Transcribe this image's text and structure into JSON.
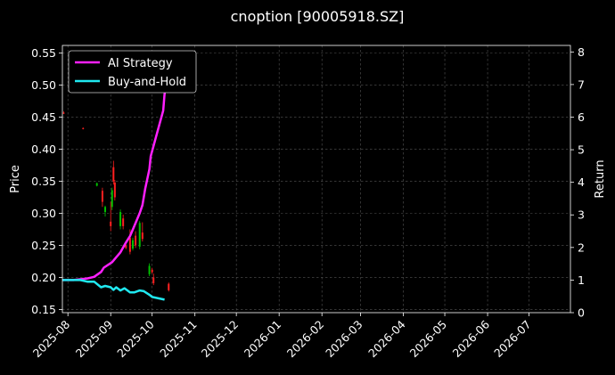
{
  "chart_data": {
    "type": "line",
    "title": "cnoption [90005918.SZ]",
    "ylabel": "Price",
    "y2label": "Return",
    "xlim": [
      "2025-07-28",
      "2026-07-31"
    ],
    "ylim": [
      0.145,
      0.562
    ],
    "y2lim": [
      0,
      8.2
    ],
    "x_ticks": [
      "2025-08",
      "2025-09",
      "2025-10",
      "2025-11",
      "2025-12",
      "2026-01",
      "2026-02",
      "2026-03",
      "2026-04",
      "2026-05",
      "2026-06",
      "2026-07"
    ],
    "y_ticks": [
      0.15,
      0.2,
      0.25,
      0.3,
      0.35,
      0.4,
      0.45,
      0.5,
      0.55
    ],
    "y_tick_labels": [
      "0.15",
      "0.20",
      "0.25",
      "0.30",
      "0.35",
      "0.40",
      "0.45",
      "0.50",
      "0.55"
    ],
    "y2_ticks": [
      0,
      1,
      2,
      3,
      4,
      5,
      6,
      7,
      8
    ],
    "y2_tick_labels": [
      "0",
      "1",
      "2",
      "3",
      "4",
      "5",
      "6",
      "7",
      "8"
    ],
    "grid": true,
    "legend_position": "top-left",
    "colors": {
      "background": "#000000",
      "grid": "#555555",
      "up": "#00c000",
      "down": "#ff2020",
      "ai": "#ff20ff",
      "bh": "#20e8f0",
      "text": "#ffffff"
    },
    "series": [
      {
        "name": "AI Strategy",
        "axis": "right",
        "x": [
          "2025-07-28",
          "2025-08-05",
          "2025-08-15",
          "2025-08-20",
          "2025-08-25",
          "2025-08-27",
          "2025-09-02",
          "2025-09-05",
          "2025-09-08",
          "2025-09-10",
          "2025-09-12",
          "2025-09-15",
          "2025-09-17",
          "2025-09-19",
          "2025-09-22",
          "2025-09-24",
          "2025-09-26",
          "2025-09-29",
          "2025-09-30",
          "2025-10-09",
          "2025-10-10",
          "2025-10-13"
        ],
        "values": [
          1.0,
          1.0,
          1.05,
          1.1,
          1.25,
          1.38,
          1.55,
          1.7,
          1.85,
          2.0,
          2.15,
          2.35,
          2.55,
          2.75,
          3.05,
          3.3,
          3.8,
          4.4,
          4.8,
          6.2,
          6.7,
          7.5
        ]
      },
      {
        "name": "Buy-and-Hold",
        "axis": "right",
        "x": [
          "2025-07-28",
          "2025-08-10",
          "2025-08-15",
          "2025-08-20",
          "2025-08-25",
          "2025-08-28",
          "2025-09-01",
          "2025-09-03",
          "2025-09-05",
          "2025-09-08",
          "2025-09-11",
          "2025-09-15",
          "2025-09-18",
          "2025-09-22",
          "2025-09-25",
          "2025-09-29",
          "2025-10-01",
          "2025-10-10"
        ],
        "values": [
          1.0,
          1.0,
          0.95,
          0.95,
          0.78,
          0.82,
          0.78,
          0.7,
          0.78,
          0.68,
          0.75,
          0.62,
          0.62,
          0.68,
          0.66,
          0.55,
          0.48,
          0.4
        ]
      }
    ],
    "candles": [
      {
        "date": "2025-07-29",
        "open": 0.457,
        "high": 0.459,
        "low": 0.455,
        "close": 0.456
      },
      {
        "date": "2025-08-12",
        "open": 0.433,
        "high": 0.434,
        "low": 0.431,
        "close": 0.432
      },
      {
        "date": "2025-08-22",
        "open": 0.343,
        "high": 0.348,
        "low": 0.342,
        "close": 0.347
      },
      {
        "date": "2025-08-26",
        "open": 0.335,
        "high": 0.34,
        "low": 0.31,
        "close": 0.318
      },
      {
        "date": "2025-08-28",
        "open": 0.302,
        "high": 0.312,
        "low": 0.295,
        "close": 0.31
      },
      {
        "date": "2025-09-01",
        "open": 0.287,
        "high": 0.318,
        "low": 0.272,
        "close": 0.28
      },
      {
        "date": "2025-09-02",
        "open": 0.31,
        "high": 0.34,
        "low": 0.305,
        "close": 0.336
      },
      {
        "date": "2025-09-03",
        "open": 0.372,
        "high": 0.382,
        "low": 0.345,
        "close": 0.35
      },
      {
        "date": "2025-09-04",
        "open": 0.348,
        "high": 0.352,
        "low": 0.32,
        "close": 0.325
      },
      {
        "date": "2025-09-08",
        "open": 0.28,
        "high": 0.306,
        "low": 0.275,
        "close": 0.302
      },
      {
        "date": "2025-09-10",
        "open": 0.292,
        "high": 0.298,
        "low": 0.275,
        "close": 0.28
      },
      {
        "date": "2025-09-12",
        "open": 0.25,
        "high": 0.256,
        "low": 0.244,
        "close": 0.246
      },
      {
        "date": "2025-09-15",
        "open": 0.262,
        "high": 0.275,
        "low": 0.236,
        "close": 0.24
      },
      {
        "date": "2025-09-17",
        "open": 0.245,
        "high": 0.262,
        "low": 0.242,
        "close": 0.258
      },
      {
        "date": "2025-09-19",
        "open": 0.265,
        "high": 0.272,
        "low": 0.246,
        "close": 0.25
      },
      {
        "date": "2025-09-22",
        "open": 0.248,
        "high": 0.288,
        "low": 0.244,
        "close": 0.285
      },
      {
        "date": "2025-09-24",
        "open": 0.27,
        "high": 0.286,
        "low": 0.256,
        "close": 0.26
      },
      {
        "date": "2025-09-29",
        "open": 0.205,
        "high": 0.222,
        "low": 0.202,
        "close": 0.218
      },
      {
        "date": "2025-10-01",
        "open": 0.212,
        "high": 0.215,
        "low": 0.206,
        "close": 0.208
      },
      {
        "date": "2025-10-02",
        "open": 0.2,
        "high": 0.206,
        "low": 0.188,
        "close": 0.191
      },
      {
        "date": "2025-10-13",
        "open": 0.19,
        "high": 0.192,
        "low": 0.178,
        "close": 0.18
      }
    ]
  }
}
